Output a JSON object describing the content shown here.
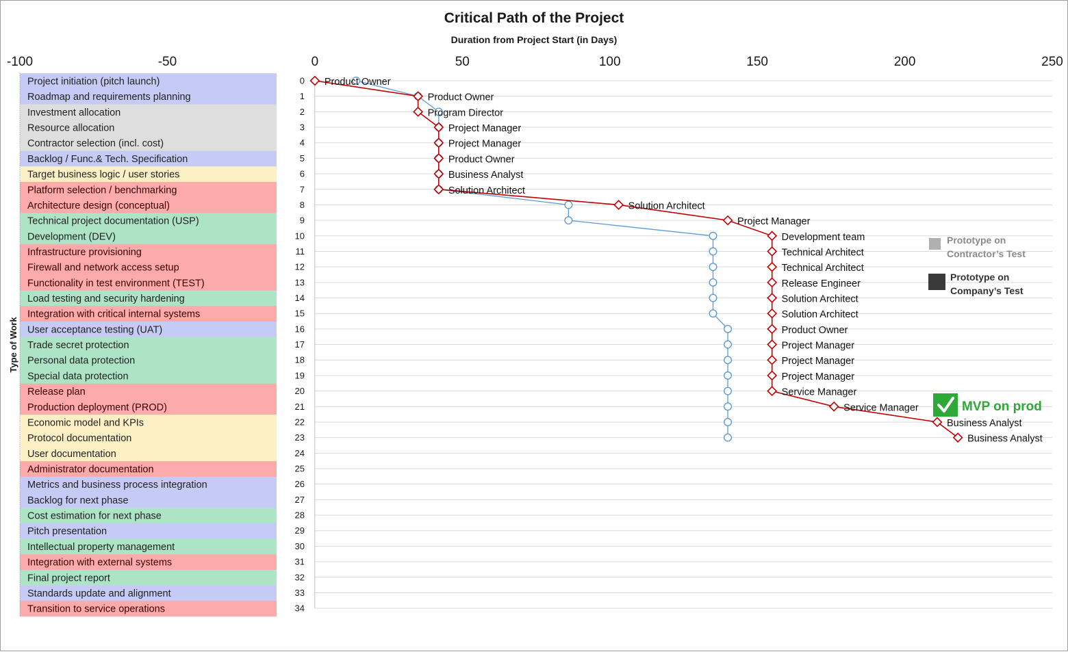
{
  "chart_data": {
    "type": "line",
    "title": "Critical Path of the Project",
    "xlabel": "Duration from Project Start (in Days)",
    "ylabel": "Type of Work",
    "xlim": [
      -100,
      250
    ],
    "x_ticks": [
      -100,
      -50,
      0,
      50,
      100,
      150,
      200,
      250
    ],
    "y_ticks": [
      0,
      1,
      2,
      3,
      4,
      5,
      6,
      7,
      8,
      9,
      10,
      11,
      12,
      13,
      14,
      15,
      16,
      17,
      18,
      19,
      20,
      21,
      22,
      23,
      24,
      25,
      26,
      27,
      28,
      29,
      30,
      31,
      32,
      33,
      34
    ],
    "categories": [
      {
        "label": "Project initiation (pitch launch)",
        "group": "blue"
      },
      {
        "label": "Roadmap and requirements planning",
        "group": "blue"
      },
      {
        "label": "Investment allocation",
        "group": "gray"
      },
      {
        "label": "Resource allocation",
        "group": "gray"
      },
      {
        "label": "Contractor selection (incl. cost)",
        "group": "gray"
      },
      {
        "label": "Backlog / Func.& Tech. Specification",
        "group": "blue"
      },
      {
        "label": "Target business logic / user stories",
        "group": "yellow"
      },
      {
        "label": "Platform selection / benchmarking",
        "group": "red"
      },
      {
        "label": "Architecture design (conceptual)",
        "group": "red"
      },
      {
        "label": "Technical project documentation (USP)",
        "group": "green"
      },
      {
        "label": "Development (DEV)",
        "group": "green"
      },
      {
        "label": "Infrastructure provisioning",
        "group": "red"
      },
      {
        "label": "Firewall and network access setup",
        "group": "red"
      },
      {
        "label": "Functionality in test environment (TEST)",
        "group": "red"
      },
      {
        "label": "Load testing and security hardening",
        "group": "green"
      },
      {
        "label": "Integration with critical internal systems",
        "group": "red"
      },
      {
        "label": "User acceptance testing (UAT)",
        "group": "blue"
      },
      {
        "label": "Trade secret protection",
        "group": "green"
      },
      {
        "label": "Personal data protection",
        "group": "green"
      },
      {
        "label": "Special data protection",
        "group": "green"
      },
      {
        "label": "Release plan",
        "group": "red"
      },
      {
        "label": "Production deployment (PROD)",
        "group": "red"
      },
      {
        "label": "Economic model and KPIs",
        "group": "yellow"
      },
      {
        "label": "Protocol documentation",
        "group": "yellow"
      },
      {
        "label": "User documentation",
        "group": "yellow"
      },
      {
        "label": "Administrator documentation",
        "group": "red"
      },
      {
        "label": "Metrics and business process integration",
        "group": "blue"
      },
      {
        "label": "Backlog for next phase",
        "group": "blue"
      },
      {
        "label": "Cost estimation for next phase",
        "group": "green"
      },
      {
        "label": "Pitch presentation",
        "group": "blue"
      },
      {
        "label": "Intellectual property management",
        "group": "green"
      },
      {
        "label": "Integration with external systems",
        "group": "red"
      },
      {
        "label": "Final project report",
        "group": "green"
      },
      {
        "label": "Standards update and alignment",
        "group": "blue"
      },
      {
        "label": "Transition to service operations",
        "group": "red"
      }
    ],
    "group_colors": {
      "blue": "#c5cbf5",
      "gray": "#dedede",
      "yellow": "#fdf0c4",
      "red": "#fdaaaa",
      "green": "#ade4c5"
    },
    "series": [
      {
        "marker": "circle",
        "color": "#5b9bd5",
        "points": [
          {
            "y": 0,
            "x": 14
          },
          {
            "y": 1,
            "x": 35
          },
          {
            "y": 2,
            "x": 42
          },
          {
            "y": 3,
            "x": 42
          },
          {
            "y": 4,
            "x": 42
          },
          {
            "y": 5,
            "x": 42
          },
          {
            "y": 6,
            "x": 42
          },
          {
            "y": 7,
            "x": 42
          },
          {
            "y": 8,
            "x": 86
          },
          {
            "y": 9,
            "x": 86
          },
          {
            "y": 10,
            "x": 135
          },
          {
            "y": 11,
            "x": 135
          },
          {
            "y": 12,
            "x": 135
          },
          {
            "y": 13,
            "x": 135
          },
          {
            "y": 14,
            "x": 135
          },
          {
            "y": 15,
            "x": 135
          },
          {
            "y": 16,
            "x": 140
          },
          {
            "y": 17,
            "x": 140
          },
          {
            "y": 18,
            "x": 140
          },
          {
            "y": 19,
            "x": 140
          },
          {
            "y": 20,
            "x": 140
          },
          {
            "y": 21,
            "x": 140
          },
          {
            "y": 22,
            "x": 140
          },
          {
            "y": 23,
            "x": 140
          }
        ]
      },
      {
        "marker": "diamond",
        "color": "#c00000",
        "points": [
          {
            "y": 0,
            "x": 0,
            "label": "Product Owner"
          },
          {
            "y": 1,
            "x": 35,
            "label": "Product Owner"
          },
          {
            "y": 2,
            "x": 35,
            "label": "Program Director"
          },
          {
            "y": 3,
            "x": 42,
            "label": "Project Manager"
          },
          {
            "y": 4,
            "x": 42,
            "label": "Project Manager"
          },
          {
            "y": 5,
            "x": 42,
            "label": "Product Owner"
          },
          {
            "y": 6,
            "x": 42,
            "label": "Business Analyst"
          },
          {
            "y": 7,
            "x": 42,
            "label": "Solution Architect"
          },
          {
            "y": 8,
            "x": 103,
            "label": "Solution Architect"
          },
          {
            "y": 9,
            "x": 140,
            "label": "Project Manager"
          },
          {
            "y": 10,
            "x": 155,
            "label": "Development team"
          },
          {
            "y": 11,
            "x": 155,
            "label": "Technical Architect"
          },
          {
            "y": 12,
            "x": 155,
            "label": "Technical Architect"
          },
          {
            "y": 13,
            "x": 155,
            "label": "Release Engineer"
          },
          {
            "y": 14,
            "x": 155,
            "label": "Solution Architect"
          },
          {
            "y": 15,
            "x": 155,
            "label": "Solution Architect"
          },
          {
            "y": 16,
            "x": 155,
            "label": "Product Owner"
          },
          {
            "y": 17,
            "x": 155,
            "label": "Project Manager"
          },
          {
            "y": 18,
            "x": 155,
            "label": "Project Manager"
          },
          {
            "y": 19,
            "x": 155,
            "label": "Project Manager"
          },
          {
            "y": 20,
            "x": 155,
            "label": "Service Manager"
          },
          {
            "y": 21,
            "x": 176,
            "label": "Service Manager"
          },
          {
            "y": 22,
            "x": 211,
            "label": "Business Analyst"
          },
          {
            "y": 23,
            "x": 218,
            "label": "Business Analyst"
          }
        ]
      }
    ],
    "annotations": [
      {
        "text_lines": [
          "Prototype on",
          "Contractor’s Test"
        ],
        "swatch_color": "#b0b0b0",
        "text_color": "#8a8a8a"
      },
      {
        "text_lines": [
          "Prototype on",
          "Company’s Test"
        ],
        "swatch_color": "#3a3a3a",
        "text_color": "#333333"
      },
      {
        "text": "MVP on prod",
        "icon": "checkmark-icon",
        "color": "#2ea836"
      }
    ]
  }
}
